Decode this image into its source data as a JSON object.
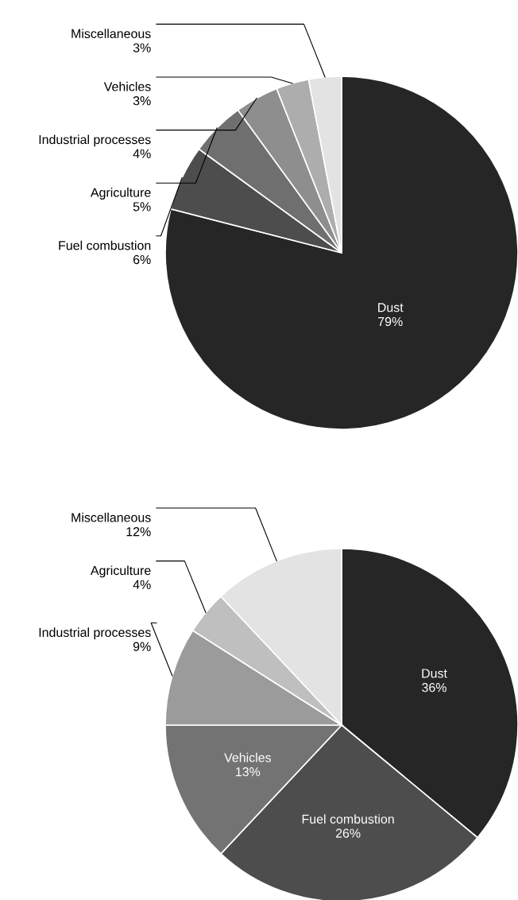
{
  "chart_data": [
    {
      "type": "pie",
      "categories": [
        "Dust",
        "Fuel combustion",
        "Agriculture",
        "Industrial processes",
        "Vehicles",
        "Miscellaneous"
      ],
      "values": [
        79,
        6,
        5,
        4,
        3,
        3
      ],
      "value_labels": [
        "79%",
        "6%",
        "5%",
        "4%",
        "3%",
        "3%"
      ],
      "colors": [
        "#262626",
        "#4d4d4d",
        "#6f6f6f",
        "#8e8e8e",
        "#adadad",
        "#e3e3e3"
      ],
      "data_labels": true
    },
    {
      "type": "pie",
      "categories": [
        "Dust",
        "Fuel combustion",
        "Vehicles",
        "Industrial processes",
        "Agriculture",
        "Miscellaneous"
      ],
      "values": [
        36,
        26,
        13,
        9,
        4,
        12
      ],
      "value_labels": [
        "36%",
        "26%",
        "13%",
        "9%",
        "4%",
        "12%"
      ],
      "colors": [
        "#262626",
        "#4d4d4d",
        "#737373",
        "#9b9b9b",
        "#bfbfbf",
        "#e3e3e3"
      ],
      "data_labels": true
    }
  ]
}
